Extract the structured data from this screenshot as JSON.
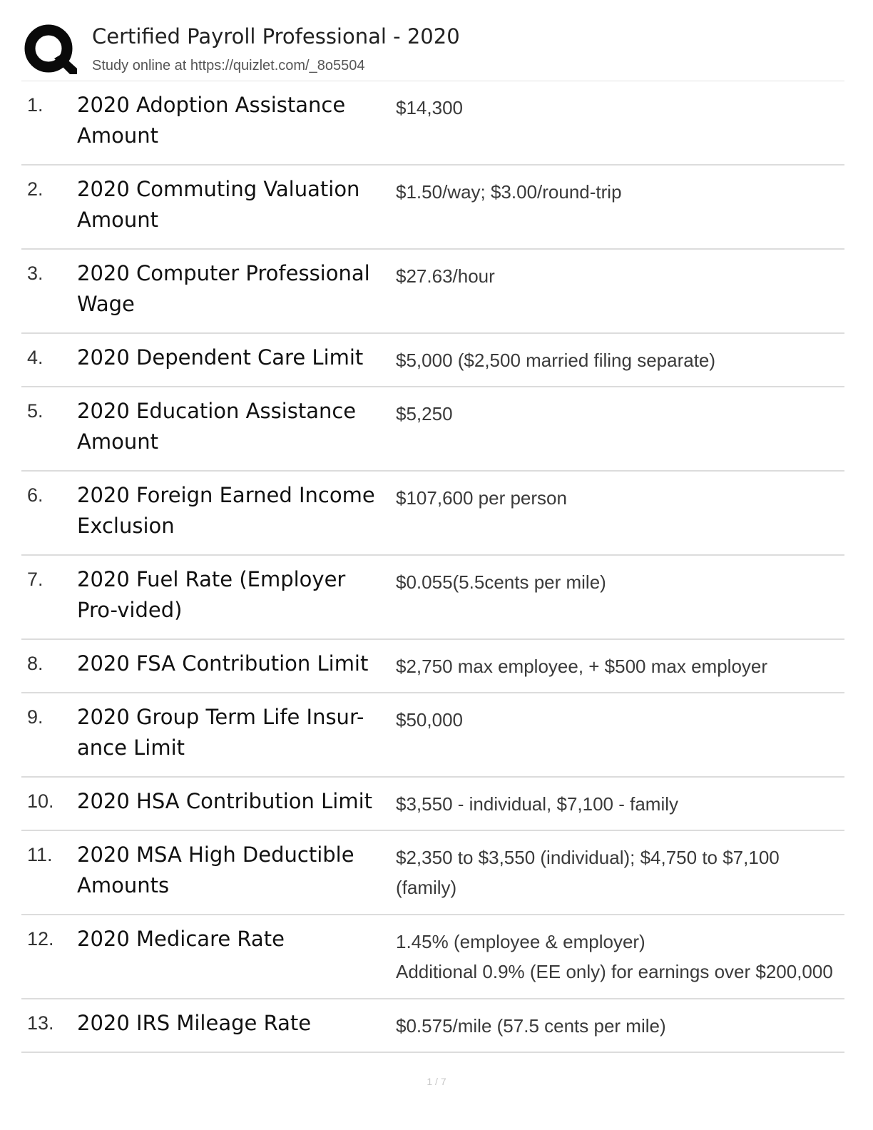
{
  "header": {
    "logo_icon": "quizlet-q-logo-icon",
    "title": "Certified Payroll Professional - 2020",
    "subtitle": "Study online at https://quizlet.com/_8o5504"
  },
  "cards": [
    {
      "number": "1.",
      "term": "2020 Adoption Assistance Amount",
      "definition": "$14,300"
    },
    {
      "number": "2.",
      "term": "2020 Commuting Valuation Amount",
      "definition": "$1.50/way; $3.00/round-trip"
    },
    {
      "number": "3.",
      "term": "2020 Computer Professional Wage",
      "definition": "$27.63/hour"
    },
    {
      "number": "4.",
      "term": "2020 Dependent Care Limit",
      "definition": "$5,000 ($2,500 married filing separate)"
    },
    {
      "number": "5.",
      "term": "2020 Education Assistance Amount",
      "definition": "$5,250"
    },
    {
      "number": "6.",
      "term": "2020 Foreign Earned Income Exclusion",
      "definition": "$107,600 per person"
    },
    {
      "number": "7.",
      "term": "2020 Fuel Rate (Employer Pro-vided)",
      "definition": "$0.055(5.5cents per mile)"
    },
    {
      "number": "8.",
      "term": "2020 FSA Contribution Limit",
      "definition": "$2,750 max employee, + $500 max employer"
    },
    {
      "number": "9.",
      "term": "2020 Group Term Life Insur-ance Limit",
      "definition": "$50,000"
    },
    {
      "number": "10.",
      "term": "2020 HSA Contribution Limit",
      "definition": "$3,550 - individual, $7,100 - family"
    },
    {
      "number": "11.",
      "term": "2020 MSA High Deductible Amounts",
      "definition": "$2,350 to $3,550 (individual); $4,750 to $7,100 (family)"
    },
    {
      "number": "12.",
      "term": "2020 Medicare Rate",
      "definition": "1.45% (employee & employer)\nAdditional 0.9% (EE only) for earnings over $200,000"
    },
    {
      "number": "13.",
      "term": "2020 IRS Mileage Rate",
      "definition": "$0.575/mile (57.5 cents per mile)"
    }
  ],
  "footer": {
    "page_number": "1 / 7"
  }
}
